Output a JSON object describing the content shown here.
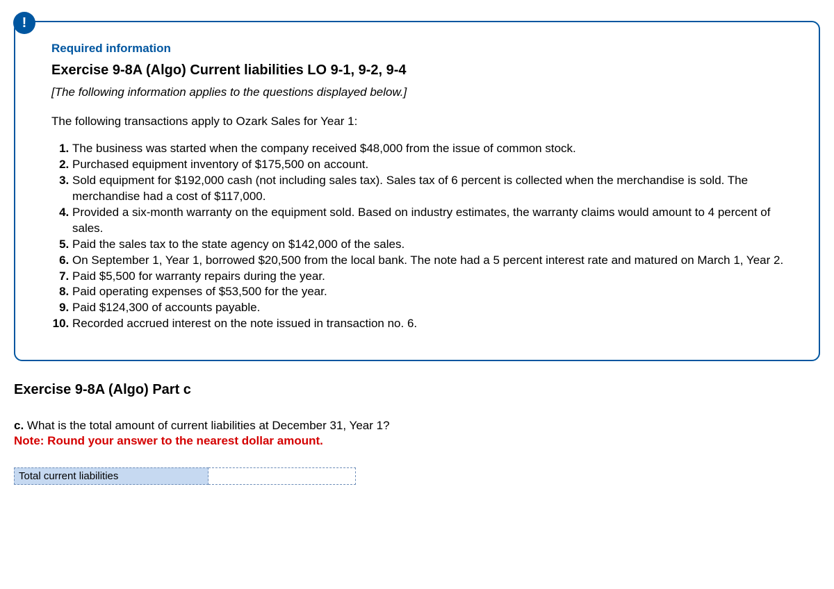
{
  "colors": {
    "brand": "#0056a0",
    "alert_red": "#d40000",
    "cell_blue": "#c6d9f1",
    "cell_border": "#6b8cb8",
    "text": "#000000",
    "bg": "#ffffff"
  },
  "badge_glyph": "!",
  "info": {
    "required_heading": "Required information",
    "exercise_title": "Exercise 9-8A (Algo) Current liabilities LO 9-1, 9-2, 9-4",
    "applies_note": "[The following information applies to the questions displayed below.]",
    "intro": "The following transactions apply to Ozark Sales for Year 1:",
    "transactions": [
      "The business was started when the company received $48,000 from the issue of common stock.",
      "Purchased equipment inventory of $175,500 on account.",
      "Sold equipment for $192,000 cash (not including sales tax). Sales tax of 6 percent is collected when the merchandise is sold. The merchandise had a cost of $117,000.",
      "Provided a six-month warranty on the equipment sold. Based on industry estimates, the warranty claims would amount to 4 percent of sales.",
      "Paid the sales tax to the state agency on $142,000 of the sales.",
      "On September 1, Year 1, borrowed $20,500 from the local bank. The note had a 5 percent interest rate and matured on March 1, Year 2.",
      "Paid $5,500 for warranty repairs during the year.",
      "Paid operating expenses of $53,500 for the year.",
      "Paid $124,300 of accounts payable.",
      "Recorded accrued interest on the note issued in transaction no. 6."
    ]
  },
  "part": {
    "title": "Exercise 9-8A (Algo) Part c",
    "q_label": "c.",
    "q_text": " What is the total amount of current liabilities at December 31, Year 1?",
    "note": "Note: Round your answer to the nearest dollar amount.",
    "answer_label": "Total current liabilities",
    "answer_value": ""
  }
}
